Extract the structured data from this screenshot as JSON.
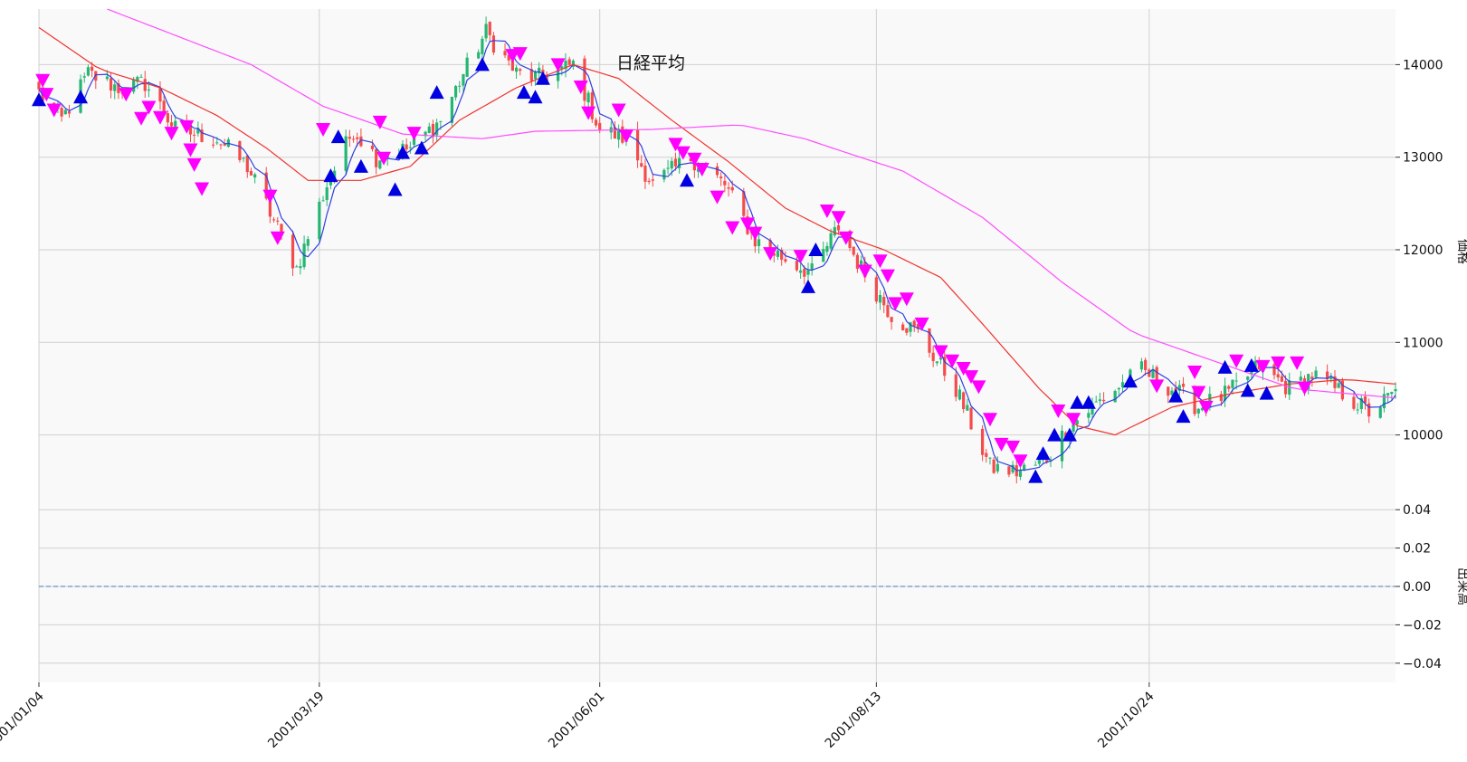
{
  "chart_data": {
    "type": "candlestick",
    "title": "日経平均",
    "price_axis_label": "価格",
    "volume_axis_label": "出来高",
    "price_ylim": [
      9400,
      14600
    ],
    "price_yticks": [
      10000,
      11000,
      12000,
      13000,
      14000
    ],
    "volume_ylim": [
      -0.05,
      0.05
    ],
    "volume_yticks": [
      0.04,
      0.02,
      0.0,
      -0.02,
      -0.04
    ],
    "volume_ytick_labels": [
      "0.04",
      "0.02",
      "0.00",
      "−0.02",
      "−0.04"
    ],
    "volume_values": 0,
    "x_range": [
      "2001-01-04",
      "2001-12-28"
    ],
    "x_ticks": [
      "2001/01/04",
      "2001/03/19",
      "2001/06/01",
      "2001/08/13",
      "2001/10/24"
    ],
    "grid": true,
    "colors": {
      "up": "#26b673",
      "down": "#f44c4c",
      "ma_short": "#2f3fe0",
      "ma_mid": "#f0332f",
      "ma_long": "#ff4cff",
      "buy_marker": "#0000e0",
      "sell_marker": "#ff00ff",
      "zero_line": "#3b7bbf",
      "plot_bg": "#f9f9f9"
    },
    "close_anchors": [
      [
        "2001-01-04",
        13700
      ],
      [
        "2001-01-10",
        13400
      ],
      [
        "2001-01-17",
        13900
      ],
      [
        "2001-01-25",
        13750
      ],
      [
        "2001-02-01",
        13800
      ],
      [
        "2001-02-09",
        13300
      ],
      [
        "2001-02-20",
        13200
      ],
      [
        "2001-02-28",
        12900
      ],
      [
        "2001-03-06",
        12400
      ],
      [
        "2001-03-13",
        11800
      ],
      [
        "2001-03-21",
        12700
      ],
      [
        "2001-03-28",
        13300
      ],
      [
        "2001-04-03",
        13000
      ],
      [
        "2001-04-12",
        13100
      ],
      [
        "2001-04-20",
        13400
      ],
      [
        "2001-04-26",
        13900
      ],
      [
        "2001-05-02",
        14350
      ],
      [
        "2001-05-10",
        13900
      ],
      [
        "2001-05-17",
        13850
      ],
      [
        "2001-05-25",
        14000
      ],
      [
        "2001-06-01",
        13300
      ],
      [
        "2001-06-08",
        13200
      ],
      [
        "2001-06-15",
        12700
      ],
      [
        "2001-06-25",
        13000
      ],
      [
        "2001-07-04",
        12700
      ],
      [
        "2001-07-12",
        12100
      ],
      [
        "2001-07-20",
        11900
      ],
      [
        "2001-07-27",
        11750
      ],
      [
        "2001-08-03",
        12250
      ],
      [
        "2001-08-09",
        11800
      ],
      [
        "2001-08-17",
        11300
      ],
      [
        "2001-08-24",
        11100
      ],
      [
        "2001-09-03",
        10500
      ],
      [
        "2001-09-12",
        9650
      ],
      [
        "2001-09-19",
        9600
      ],
      [
        "2001-09-26",
        9700
      ],
      [
        "2001-10-03",
        10100
      ],
      [
        "2001-10-12",
        10400
      ],
      [
        "2001-10-22",
        10700
      ],
      [
        "2001-10-30",
        10500
      ],
      [
        "2001-11-06",
        10300
      ],
      [
        "2001-11-14",
        10450
      ],
      [
        "2001-11-22",
        10750
      ],
      [
        "2001-11-30",
        10500
      ],
      [
        "2001-12-06",
        10650
      ],
      [
        "2001-12-14",
        10450
      ],
      [
        "2001-12-21",
        10250
      ],
      [
        "2001-12-28",
        10450
      ]
    ],
    "ma_mid_anchors": [
      [
        "2001-01-04",
        14400
      ],
      [
        "2001-01-20",
        13950
      ],
      [
        "2001-02-05",
        13750
      ],
      [
        "2001-02-20",
        13450
      ],
      [
        "2001-03-05",
        13100
      ],
      [
        "2001-03-16",
        12750
      ],
      [
        "2001-03-30",
        12750
      ],
      [
        "2001-04-12",
        12900
      ],
      [
        "2001-04-25",
        13400
      ],
      [
        "2001-05-10",
        13750
      ],
      [
        "2001-05-25",
        14000
      ],
      [
        "2001-06-06",
        13850
      ],
      [
        "2001-06-20",
        13400
      ],
      [
        "2001-07-05",
        12950
      ],
      [
        "2001-07-20",
        12450
      ],
      [
        "2001-08-01",
        12200
      ],
      [
        "2001-08-15",
        12000
      ],
      [
        "2001-08-30",
        11700
      ],
      [
        "2001-09-10",
        11200
      ],
      [
        "2001-09-25",
        10500
      ],
      [
        "2001-10-05",
        10100
      ],
      [
        "2001-10-15",
        10000
      ],
      [
        "2001-10-30",
        10300
      ],
      [
        "2001-11-15",
        10450
      ],
      [
        "2001-11-30",
        10550
      ],
      [
        "2001-12-15",
        10600
      ],
      [
        "2001-12-28",
        10550
      ]
    ],
    "ma_long_anchors": [
      [
        "2001-01-22",
        14600
      ],
      [
        "2001-02-10",
        14300
      ],
      [
        "2001-03-01",
        14000
      ],
      [
        "2001-03-20",
        13550
      ],
      [
        "2001-04-10",
        13250
      ],
      [
        "2001-05-01",
        13200
      ],
      [
        "2001-05-15",
        13280
      ],
      [
        "2001-06-15",
        13300
      ],
      [
        "2001-07-08",
        13350
      ],
      [
        "2001-07-25",
        13200
      ],
      [
        "2001-08-05",
        13050
      ],
      [
        "2001-08-20",
        12850
      ],
      [
        "2001-09-10",
        12350
      ],
      [
        "2001-10-01",
        11650
      ],
      [
        "2001-10-20",
        11100
      ],
      [
        "2001-11-10",
        10800
      ],
      [
        "2001-12-01",
        10500
      ],
      [
        "2001-12-28",
        10400
      ]
    ],
    "buy_signals": [
      [
        "2001-01-04",
        13620
      ],
      [
        "2001-01-15",
        13650
      ],
      [
        "2001-03-22",
        12800
      ],
      [
        "2001-03-24",
        13220
      ],
      [
        "2001-03-30",
        12900
      ],
      [
        "2001-04-08",
        12650
      ],
      [
        "2001-04-10",
        13050
      ],
      [
        "2001-04-15",
        13100
      ],
      [
        "2001-04-19",
        13700
      ],
      [
        "2001-05-01",
        14000
      ],
      [
        "2001-05-12",
        13700
      ],
      [
        "2001-05-15",
        13650
      ],
      [
        "2001-05-17",
        13850
      ],
      [
        "2001-06-24",
        12750
      ],
      [
        "2001-07-26",
        11600
      ],
      [
        "2001-07-28",
        12000
      ],
      [
        "2001-09-24",
        9550
      ],
      [
        "2001-09-26",
        9800
      ],
      [
        "2001-09-29",
        10000
      ],
      [
        "2001-10-03",
        10000
      ],
      [
        "2001-10-05",
        10350
      ],
      [
        "2001-10-08",
        10350
      ],
      [
        "2001-10-19",
        10580
      ],
      [
        "2001-10-31",
        10420
      ],
      [
        "2001-11-02",
        10200
      ],
      [
        "2001-11-13",
        10730
      ],
      [
        "2001-11-19",
        10480
      ],
      [
        "2001-11-20",
        10750
      ],
      [
        "2001-11-24",
        10450
      ]
    ],
    "sell_signals": [
      [
        "2001-01-05",
        13830
      ],
      [
        "2001-01-06",
        13680
      ],
      [
        "2001-01-08",
        13510
      ],
      [
        "2001-01-27",
        13680
      ],
      [
        "2001-01-31",
        13420
      ],
      [
        "2001-02-02",
        13540
      ],
      [
        "2001-02-05",
        13430
      ],
      [
        "2001-02-08",
        13260
      ],
      [
        "2001-02-12",
        13330
      ],
      [
        "2001-02-13",
        13080
      ],
      [
        "2001-02-14",
        12920
      ],
      [
        "2001-02-16",
        12660
      ],
      [
        "2001-03-06",
        12580
      ],
      [
        "2001-03-08",
        12130
      ],
      [
        "2001-03-20",
        13300
      ],
      [
        "2001-04-04",
        13380
      ],
      [
        "2001-04-05",
        12990
      ],
      [
        "2001-04-13",
        13260
      ],
      [
        "2001-05-09",
        14100
      ],
      [
        "2001-05-11",
        14120
      ],
      [
        "2001-05-21",
        14000
      ],
      [
        "2001-05-27",
        13760
      ],
      [
        "2001-05-29",
        13480
      ],
      [
        "2001-06-06",
        13510
      ],
      [
        "2001-06-08",
        13230
      ],
      [
        "2001-06-21",
        13140
      ],
      [
        "2001-06-23",
        13050
      ],
      [
        "2001-06-26",
        12980
      ],
      [
        "2001-06-28",
        12870
      ],
      [
        "2001-07-02",
        12570
      ],
      [
        "2001-07-06",
        12240
      ],
      [
        "2001-07-10",
        12280
      ],
      [
        "2001-07-12",
        12180
      ],
      [
        "2001-07-16",
        11960
      ],
      [
        "2001-07-24",
        11930
      ],
      [
        "2001-07-31",
        12420
      ],
      [
        "2001-08-03",
        12350
      ],
      [
        "2001-08-05",
        12130
      ],
      [
        "2001-08-10",
        11770
      ],
      [
        "2001-08-14",
        11880
      ],
      [
        "2001-08-16",
        11720
      ],
      [
        "2001-08-18",
        11420
      ],
      [
        "2001-08-21",
        11470
      ],
      [
        "2001-08-25",
        11200
      ],
      [
        "2001-08-30",
        10900
      ],
      [
        "2001-09-02",
        10800
      ],
      [
        "2001-09-05",
        10720
      ],
      [
        "2001-09-07",
        10630
      ],
      [
        "2001-09-09",
        10520
      ],
      [
        "2001-09-12",
        10170
      ],
      [
        "2001-09-15",
        9900
      ],
      [
        "2001-09-18",
        9870
      ],
      [
        "2001-09-20",
        9720
      ],
      [
        "2001-09-30",
        10260
      ],
      [
        "2001-10-04",
        10170
      ],
      [
        "2001-10-26",
        10530
      ],
      [
        "2001-11-05",
        10680
      ],
      [
        "2001-11-06",
        10460
      ],
      [
        "2001-11-08",
        10300
      ],
      [
        "2001-11-16",
        10800
      ],
      [
        "2001-11-23",
        10740
      ],
      [
        "2001-11-27",
        10780
      ],
      [
        "2001-12-02",
        10780
      ],
      [
        "2001-12-04",
        10510
      ]
    ]
  }
}
